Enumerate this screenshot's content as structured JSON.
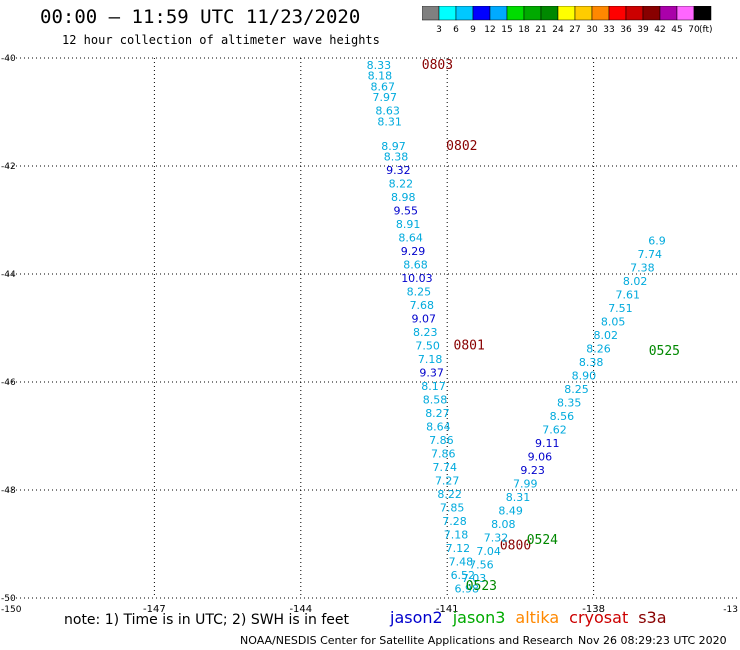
{
  "header": {
    "title": "00:00 — 11:59 UTC 11/23/2020",
    "subtitle": "12 hour collection of altimeter wave heights"
  },
  "colorbar": {
    "colors": [
      "#808080",
      "#00ffff",
      "#00c8ff",
      "#0000ff",
      "#00aaff",
      "#00dd00",
      "#00aa00",
      "#008800",
      "#ffff00",
      "#ffcc00",
      "#ff8800",
      "#ff0000",
      "#cc0000",
      "#880000",
      "#aa00aa",
      "#ff66ff",
      "#000000"
    ],
    "labels": [
      "3",
      "6",
      "9",
      "12",
      "15",
      "18",
      "21",
      "24",
      "27",
      "30",
      "33",
      "36",
      "39",
      "42",
      "45",
      "70"
    ],
    "unit": "(ft)"
  },
  "footer": {
    "note": "note: 1) Time is in UTC; 2) SWH is in feet",
    "legend": [
      {
        "name": "jason2",
        "color": "#0000cc"
      },
      {
        "name": "jason3",
        "color": "#00aa00"
      },
      {
        "name": "altika",
        "color": "#ff8800"
      },
      {
        "name": "cryosat",
        "color": "#cc0000"
      },
      {
        "name": "s3a",
        "color": "#880000"
      }
    ],
    "credit": "NOAA/NESDIS Center for Satellite Applications and Research",
    "stamp": "Nov 26 08:29:23 UTC 2020"
  },
  "chart_data": {
    "type": "scatter",
    "xlim": [
      -150,
      -135
    ],
    "ylim": [
      -50,
      -40
    ],
    "xticks": [
      -147,
      -144,
      -141,
      -138
    ],
    "xtick_labels": [
      "-147",
      "-144",
      "-141",
      "-138"
    ],
    "yticks": [
      -42,
      -44,
      -46,
      -48
    ],
    "ytick_labels": [
      "-42",
      "-44",
      "-46",
      "-48"
    ],
    "corner_labels": {
      "top_left": "-40",
      "bottom_left": "-150",
      "bottom_left_y": "-50",
      "bottom_right": "-13"
    },
    "grid": true,
    "series": [
      {
        "name": "s3a",
        "points": [
          {
            "lat": -40.2,
            "lon": -142.4,
            "v": "8.33"
          },
          {
            "lat": -40.4,
            "lon": -142.38,
            "v": "8.18"
          },
          {
            "lat": -40.6,
            "lon": -142.32,
            "v": "8.67"
          },
          {
            "lat": -40.8,
            "lon": -142.28,
            "v": "7.97"
          },
          {
            "lat": -41.05,
            "lon": -142.22,
            "v": "8.63"
          },
          {
            "lat": -41.25,
            "lon": -142.18,
            "v": "8.31"
          },
          {
            "lat": -41.7,
            "lon": -142.1,
            "v": "8.97"
          },
          {
            "lat": -41.9,
            "lon": -142.05,
            "v": "8.38"
          },
          {
            "lat": -42.15,
            "lon": -142.0,
            "v": "9.32"
          },
          {
            "lat": -42.4,
            "lon": -141.95,
            "v": "8.22"
          },
          {
            "lat": -42.65,
            "lon": -141.9,
            "v": "8.98"
          },
          {
            "lat": -42.9,
            "lon": -141.85,
            "v": "9.55"
          },
          {
            "lat": -43.15,
            "lon": -141.8,
            "v": "8.91"
          },
          {
            "lat": -43.4,
            "lon": -141.75,
            "v": "8.64"
          },
          {
            "lat": -43.65,
            "lon": -141.7,
            "v": "9.29"
          },
          {
            "lat": -43.9,
            "lon": -141.65,
            "v": "8.68"
          },
          {
            "lat": -44.15,
            "lon": -141.62,
            "v": "10.03"
          },
          {
            "lat": -44.4,
            "lon": -141.58,
            "v": "8.25"
          },
          {
            "lat": -44.65,
            "lon": -141.52,
            "v": "7.68"
          },
          {
            "lat": -44.9,
            "lon": -141.48,
            "v": "9.07"
          },
          {
            "lat": -45.15,
            "lon": -141.45,
            "v": "8.23"
          },
          {
            "lat": -45.4,
            "lon": -141.4,
            "v": "7.50"
          },
          {
            "lat": -45.65,
            "lon": -141.35,
            "v": "7.18"
          },
          {
            "lat": -45.9,
            "lon": -141.32,
            "v": "9.37"
          },
          {
            "lat": -46.15,
            "lon": -141.28,
            "v": "8.17"
          },
          {
            "lat": -46.4,
            "lon": -141.25,
            "v": "8.58"
          },
          {
            "lat": -46.65,
            "lon": -141.2,
            "v": "8.27"
          },
          {
            "lat": -46.9,
            "lon": -141.18,
            "v": "8.64"
          },
          {
            "lat": -47.15,
            "lon": -141.12,
            "v": "7.86"
          },
          {
            "lat": -47.4,
            "lon": -141.08,
            "v": "7.86"
          },
          {
            "lat": -47.65,
            "lon": -141.05,
            "v": "7.74"
          },
          {
            "lat": -47.9,
            "lon": -141.0,
            "v": "7.27"
          },
          {
            "lat": -48.15,
            "lon": -140.95,
            "v": "8.22"
          },
          {
            "lat": -48.4,
            "lon": -140.9,
            "v": "7.85"
          },
          {
            "lat": -48.65,
            "lon": -140.85,
            "v": "7.28"
          },
          {
            "lat": -48.9,
            "lon": -140.82,
            "v": "7.18"
          },
          {
            "lat": -49.15,
            "lon": -140.78,
            "v": "7.12"
          },
          {
            "lat": -49.4,
            "lon": -140.72,
            "v": "7.48"
          },
          {
            "lat": -49.65,
            "lon": -140.68,
            "v": "6.52"
          }
        ],
        "labels": [
          {
            "lat": -40.2,
            "lon": -141.2,
            "text": "0803"
          },
          {
            "lat": -41.7,
            "lon": -140.7,
            "text": "0802"
          },
          {
            "lat": -45.4,
            "lon": -140.55,
            "text": "0801"
          },
          {
            "lat": -49.1,
            "lon": -139.6,
            "text": "0800"
          }
        ]
      },
      {
        "name": "jason3",
        "points": [
          {
            "lat": -49.9,
            "lon": -140.6,
            "v": "6.98"
          },
          {
            "lat": -49.7,
            "lon": -140.45,
            "v": "7.03"
          },
          {
            "lat": -49.45,
            "lon": -140.3,
            "v": "7.56"
          },
          {
            "lat": -49.2,
            "lon": -140.15,
            "v": "7.04"
          },
          {
            "lat": -48.95,
            "lon": -140.0,
            "v": "7.32"
          },
          {
            "lat": -48.7,
            "lon": -139.85,
            "v": "8.08"
          },
          {
            "lat": -48.45,
            "lon": -139.7,
            "v": "8.49"
          },
          {
            "lat": -48.2,
            "lon": -139.55,
            "v": "8.31"
          },
          {
            "lat": -47.95,
            "lon": -139.4,
            "v": "7.99"
          },
          {
            "lat": -47.7,
            "lon": -139.25,
            "v": "9.23"
          },
          {
            "lat": -47.45,
            "lon": -139.1,
            "v": "9.06"
          },
          {
            "lat": -47.2,
            "lon": -138.95,
            "v": "9.11"
          },
          {
            "lat": -46.95,
            "lon": -138.8,
            "v": "7.62"
          },
          {
            "lat": -46.7,
            "lon": -138.65,
            "v": "8.56"
          },
          {
            "lat": -46.45,
            "lon": -138.5,
            "v": "8.35"
          },
          {
            "lat": -46.2,
            "lon": -138.35,
            "v": "8.25"
          },
          {
            "lat": -45.95,
            "lon": -138.2,
            "v": "8.90"
          },
          {
            "lat": -45.7,
            "lon": -138.05,
            "v": "8.38"
          },
          {
            "lat": -45.45,
            "lon": -137.9,
            "v": "8.26"
          },
          {
            "lat": -45.2,
            "lon": -137.75,
            "v": "8.02"
          },
          {
            "lat": -44.95,
            "lon": -137.6,
            "v": "8.05"
          },
          {
            "lat": -44.7,
            "lon": -137.45,
            "v": "7.51"
          },
          {
            "lat": -44.45,
            "lon": -137.3,
            "v": "7.61"
          },
          {
            "lat": -44.2,
            "lon": -137.15,
            "v": "8.02"
          },
          {
            "lat": -43.95,
            "lon": -137.0,
            "v": "7.38"
          },
          {
            "lat": -43.7,
            "lon": -136.85,
            "v": "7.74"
          },
          {
            "lat": -43.45,
            "lon": -136.7,
            "v": "6.9"
          }
        ],
        "labels": [
          {
            "lat": -49.85,
            "lon": -140.3,
            "text": "0523"
          },
          {
            "lat": -49.0,
            "lon": -139.05,
            "text": "0524"
          },
          {
            "lat": -45.5,
            "lon": -136.55,
            "text": "0525"
          }
        ]
      }
    ]
  }
}
